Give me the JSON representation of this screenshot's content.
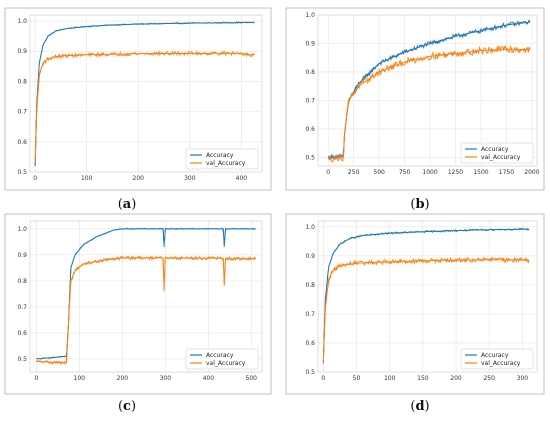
{
  "figure": {
    "series_names": [
      "Accuracy",
      "val_Accuracy"
    ],
    "colors": {
      "accuracy": "#1f77b4",
      "val_accuracy": "#ff7f0e",
      "grid": "#e4e4e4",
      "frame": "#999999"
    }
  },
  "chart_data": [
    {
      "type": "line",
      "panel": "a",
      "caption": {
        "open": "(",
        "letter": "a",
        "close": ")"
      },
      "xlim": [
        -10,
        440
      ],
      "ylim": [
        0.5,
        1.02
      ],
      "xticks": [
        0,
        100,
        200,
        300,
        400
      ],
      "xtick_labels": [
        "0",
        "100",
        "200",
        "300",
        "400"
      ],
      "yticks": [
        0.5,
        0.6,
        0.7,
        0.8,
        0.9,
        1.0
      ],
      "ytick_labels": [
        "0.5",
        "0.6",
        "0.7",
        "0.8",
        "0.9",
        "1.0"
      ],
      "grid": true,
      "legend": "bottom-right",
      "series": [
        {
          "name": "Accuracy",
          "x": [
            0,
            3,
            8,
            15,
            25,
            40,
            60,
            100,
            150,
            200,
            300,
            400,
            425
          ],
          "values": [
            0.52,
            0.72,
            0.86,
            0.92,
            0.95,
            0.967,
            0.975,
            0.982,
            0.987,
            0.99,
            0.993,
            0.995,
            0.995
          ],
          "noise": 0.002
        },
        {
          "name": "val_Accuracy",
          "x": [
            0,
            3,
            8,
            15,
            25,
            40,
            60,
            100,
            150,
            200,
            300,
            400,
            425
          ],
          "values": [
            0.53,
            0.7,
            0.82,
            0.86,
            0.875,
            0.882,
            0.885,
            0.888,
            0.89,
            0.892,
            0.893,
            0.893,
            0.887
          ],
          "noise": 0.006
        }
      ]
    },
    {
      "type": "line",
      "panel": "b",
      "caption": {
        "open": "(",
        "letter": "b",
        "close": ")"
      },
      "xlim": [
        -100,
        2050
      ],
      "ylim": [
        0.47,
        1.0
      ],
      "xticks": [
        0,
        250,
        500,
        750,
        1000,
        1250,
        1500,
        1750,
        2000
      ],
      "xtick_labels": [
        "0",
        "250",
        "500",
        "750",
        "1000",
        "1250",
        "1500",
        "1750",
        "2000"
      ],
      "yticks": [
        0.5,
        0.6,
        0.7,
        0.8,
        0.9,
        1.0
      ],
      "ytick_labels": [
        "0.5",
        "0.6",
        "0.7",
        "0.8",
        "0.9",
        "1.0"
      ],
      "grid": true,
      "legend": "bottom-right",
      "series": [
        {
          "name": "Accuracy",
          "x": [
            0,
            150,
            160,
            200,
            300,
            500,
            750,
            1000,
            1250,
            1500,
            1750,
            1980
          ],
          "values": [
            0.5,
            0.505,
            0.58,
            0.7,
            0.76,
            0.83,
            0.87,
            0.9,
            0.925,
            0.945,
            0.965,
            0.975
          ],
          "noise": 0.008
        },
        {
          "name": "val_Accuracy",
          "x": [
            0,
            150,
            160,
            200,
            300,
            500,
            750,
            1000,
            1250,
            1500,
            1750,
            1980
          ],
          "values": [
            0.495,
            0.5,
            0.58,
            0.7,
            0.75,
            0.8,
            0.835,
            0.855,
            0.865,
            0.875,
            0.88,
            0.878
          ],
          "noise": 0.012
        }
      ]
    },
    {
      "type": "line",
      "panel": "c",
      "caption": {
        "open": "(",
        "letter": "c",
        "close": ")"
      },
      "xlim": [
        -15,
        525
      ],
      "ylim": [
        0.45,
        1.03
      ],
      "xticks": [
        0,
        100,
        200,
        300,
        400,
        500
      ],
      "xtick_labels": [
        "0",
        "100",
        "200",
        "300",
        "400",
        "500"
      ],
      "yticks": [
        0.5,
        0.6,
        0.7,
        0.8,
        0.9,
        1.0
      ],
      "ytick_labels": [
        "0.5",
        "0.6",
        "0.7",
        "0.8",
        "0.9",
        "1.0"
      ],
      "grid": true,
      "legend": "bottom-right",
      "series": [
        {
          "name": "Accuracy",
          "x": [
            0,
            70,
            75,
            80,
            90,
            110,
            140,
            180,
            200,
            295,
            297,
            300,
            435,
            437,
            440,
            510
          ],
          "values": [
            0.5,
            0.51,
            0.65,
            0.85,
            0.9,
            0.94,
            0.97,
            0.995,
            1.0,
            1.0,
            0.93,
            1.0,
            1.0,
            0.93,
            1.0,
            1.0
          ],
          "noise": 0.002
        },
        {
          "name": "val_Accuracy",
          "x": [
            0,
            70,
            75,
            80,
            90,
            110,
            140,
            180,
            200,
            295,
            297,
            300,
            435,
            437,
            440,
            510
          ],
          "values": [
            0.49,
            0.485,
            0.65,
            0.8,
            0.84,
            0.865,
            0.875,
            0.885,
            0.888,
            0.888,
            0.76,
            0.888,
            0.887,
            0.78,
            0.885,
            0.885
          ],
          "noise": 0.006
        }
      ]
    },
    {
      "type": "line",
      "panel": "d",
      "caption": {
        "open": "(",
        "letter": "d",
        "close": ")"
      },
      "xlim": [
        -8,
        322
      ],
      "ylim": [
        0.5,
        1.02
      ],
      "xticks": [
        0,
        50,
        100,
        150,
        200,
        250,
        300
      ],
      "xtick_labels": [
        "0",
        "50",
        "100",
        "150",
        "200",
        "250",
        "300"
      ],
      "yticks": [
        0.5,
        0.6,
        0.7,
        0.8,
        0.9,
        1.0
      ],
      "ytick_labels": [
        "0.5",
        "0.6",
        "0.7",
        "0.8",
        "0.9",
        "1.0"
      ],
      "grid": true,
      "legend": "bottom-right",
      "series": [
        {
          "name": "Accuracy",
          "x": [
            0,
            3,
            8,
            15,
            25,
            40,
            60,
            100,
            150,
            200,
            250,
            310
          ],
          "values": [
            0.53,
            0.75,
            0.86,
            0.91,
            0.94,
            0.96,
            0.97,
            0.978,
            0.983,
            0.987,
            0.99,
            0.992
          ],
          "noise": 0.003
        },
        {
          "name": "val_Accuracy",
          "x": [
            0,
            3,
            8,
            15,
            25,
            40,
            60,
            100,
            150,
            200,
            250,
            310
          ],
          "values": [
            0.53,
            0.72,
            0.82,
            0.85,
            0.865,
            0.872,
            0.876,
            0.88,
            0.883,
            0.885,
            0.887,
            0.885
          ],
          "noise": 0.008
        }
      ]
    }
  ]
}
